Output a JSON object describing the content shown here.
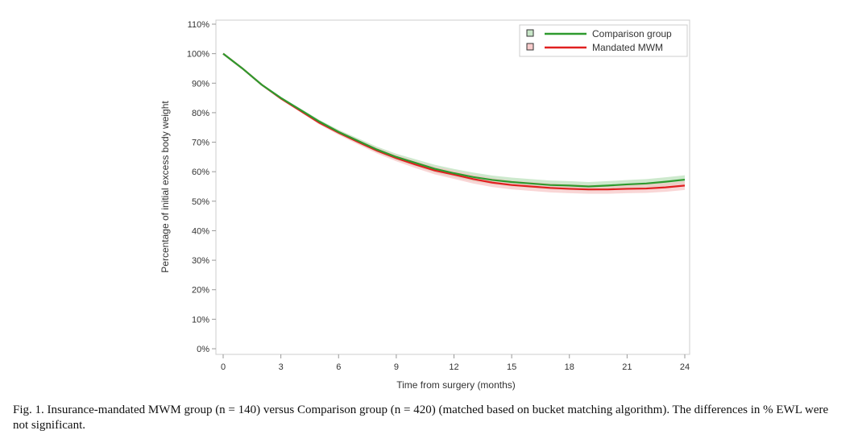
{
  "chart_data": {
    "type": "line",
    "title": "",
    "xlabel": "Time from surgery (months)",
    "ylabel": "Percentage of initial excess body weight",
    "xlim": [
      0,
      24
    ],
    "ylim": [
      0,
      110
    ],
    "xticks": [
      "0",
      "3",
      "6",
      "9",
      "12",
      "15",
      "18",
      "21",
      "24"
    ],
    "yticks": [
      "0%",
      "10%",
      "20%",
      "30%",
      "40%",
      "50%",
      "60%",
      "70%",
      "80%",
      "90%",
      "100%",
      "110%"
    ],
    "legend_position": "top-right",
    "x": [
      0,
      1,
      2,
      3,
      4,
      5,
      6,
      7,
      8,
      9,
      10,
      11,
      12,
      13,
      14,
      15,
      16,
      17,
      18,
      19,
      20,
      21,
      22,
      23,
      24
    ],
    "series": [
      {
        "name": "Comparison group",
        "color": "#2e9a2e",
        "band_color": "#b8e0b8",
        "values": [
          100,
          95,
          89.5,
          85,
          81,
          77,
          73.5,
          70.5,
          67.5,
          65,
          63,
          61,
          59.5,
          58.2,
          57.2,
          56.5,
          56,
          55.5,
          55.3,
          55,
          55.3,
          55.7,
          56,
          56.6,
          57.3
        ]
      },
      {
        "name": "Mandated MWM",
        "color": "#e02020",
        "band_color": "#f6c4c4",
        "values": [
          100,
          95,
          89.5,
          84.8,
          80.7,
          76.6,
          73.2,
          70.1,
          67.1,
          64.6,
          62.4,
          60.4,
          59,
          57.5,
          56.3,
          55.5,
          55,
          54.5,
          54.2,
          54,
          54,
          54.2,
          54.3,
          54.7,
          55.3
        ]
      }
    ]
  },
  "caption": "Fig. 1. Insurance-mandated MWM group (n = 140) versus Comparison group (n = 420) (matched based on bucket matching algorithm). The differences in % EWL were not significant."
}
